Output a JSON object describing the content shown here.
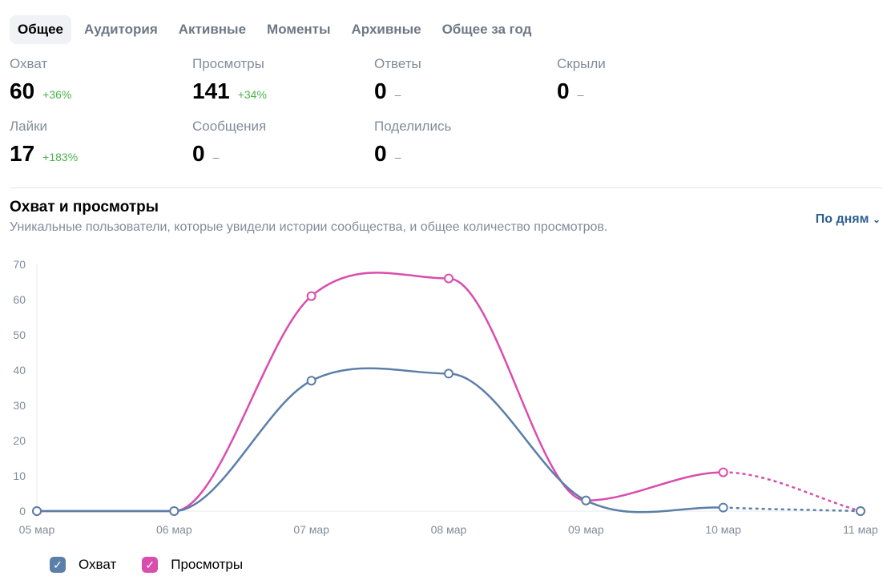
{
  "tabs": [
    "Общее",
    "Аудитория",
    "Активные",
    "Моменты",
    "Архивные",
    "Общее за год"
  ],
  "stats": [
    {
      "label": "Охват",
      "value": "60",
      "change": "+36%"
    },
    {
      "label": "Просмотры",
      "value": "141",
      "change": "+34%"
    },
    {
      "label": "Ответы",
      "value": "0",
      "change": "–"
    },
    {
      "label": "Скрыли",
      "value": "0",
      "change": "–"
    },
    {
      "label": "Лайки",
      "value": "17",
      "change": "+183%"
    },
    {
      "label": "Сообщения",
      "value": "0",
      "change": "–"
    },
    {
      "label": "Поделились",
      "value": "0",
      "change": "–"
    }
  ],
  "section": {
    "title": "Охват и просмотры",
    "subtitle": "Уникальные пользователи, которые увидели истории сообщества, и общее количество просмотров.",
    "period": "По дням"
  },
  "chart_data": {
    "type": "line",
    "categories": [
      "05 мар",
      "06 мар",
      "07 мар",
      "08 мар",
      "09 мар",
      "10 мар",
      "11 мар"
    ],
    "yticks": [
      0,
      10,
      20,
      30,
      40,
      50,
      60,
      70
    ],
    "ylim": [
      0,
      70
    ],
    "series": [
      {
        "name": "Охват",
        "color": "#5b7fa8",
        "values": [
          0,
          0,
          37,
          39,
          3,
          1,
          0
        ]
      },
      {
        "name": "Просмотры",
        "color": "#d94dae",
        "values": [
          0,
          0,
          61,
          66,
          3,
          11,
          0
        ]
      }
    ],
    "dotted_last_segment": true
  }
}
